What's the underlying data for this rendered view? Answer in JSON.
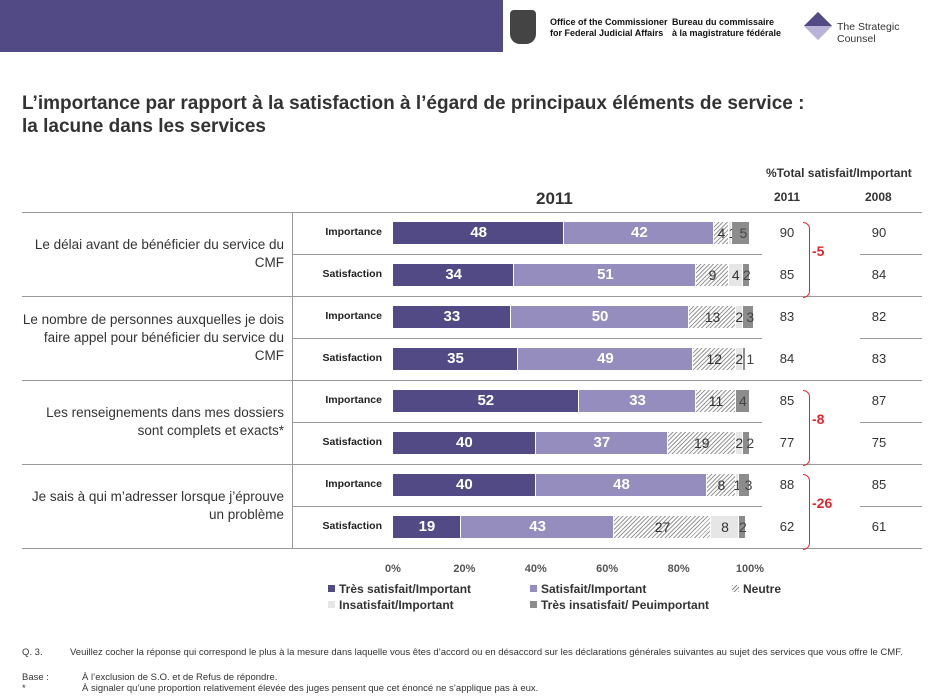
{
  "header": {
    "logo1_line1": "Office of the Commissioner",
    "logo1_line2": "for Federal Judicial Affairs",
    "logo2_line1": "Bureau du commissaire",
    "logo2_line2": "à la magistrature fédérale",
    "logo3": "The Strategic Counsel"
  },
  "title_line1": "L’importance par rapport à la satisfaction à l’égard de principaux éléments de service :",
  "title_line2": "la lacune dans les services",
  "colors": {
    "tres_satisfait": "#524a85",
    "satisfait": "#958dbd",
    "neutre": "hatched",
    "insatisfait": "#e6e6e6",
    "tres_insatisfait": "#8c8c8c",
    "gap": "#e0262c"
  },
  "chart_data": {
    "type": "bar",
    "orientation": "horizontal-stacked-100",
    "year_label": "2011",
    "xlim": [
      0,
      100
    ],
    "ticks": [
      "0%",
      "20%",
      "40%",
      "60%",
      "80%",
      "100%"
    ],
    "legend": [
      "Très satisfait/Important",
      "Satisfait/Important",
      "Neutre",
      "Insatisfait/Important",
      "Très insatisfait/ Peuimportant"
    ],
    "right_header": "%Total satisfait/Important",
    "right_cols": [
      "2011",
      "2008"
    ],
    "groups": [
      {
        "label": "Le délai avant de bénéficier du service du CMF",
        "gap": "-5",
        "rows": [
          {
            "label": "Importance",
            "values": [
              48,
              42,
              4,
              1,
              5
            ],
            "t2011": "90",
            "t2008": "90"
          },
          {
            "label": "Satisfaction",
            "values": [
              34,
              51,
              9,
              4,
              2
            ],
            "t2011": "85",
            "t2008": "84"
          }
        ]
      },
      {
        "label": "Le nombre de personnes auxquelles je dois faire appel pour bénéficier du service du CMF",
        "gap": "",
        "rows": [
          {
            "label": "Importance",
            "values": [
              33,
              50,
              13,
              2,
              3
            ],
            "t2011": "83",
            "t2008": "82"
          },
          {
            "label": "Satisfaction",
            "values": [
              35,
              49,
              12,
              2,
              1
            ],
            "t2011": "84",
            "t2008": "83"
          }
        ]
      },
      {
        "label": "Les renseignements dans mes dossiers sont complets et exacts*",
        "gap": "-8",
        "rows": [
          {
            "label": "Importance",
            "values": [
              52,
              33,
              11,
              0,
              4
            ],
            "t2011": "85",
            "t2008": "87"
          },
          {
            "label": "Satisfaction",
            "values": [
              40,
              37,
              19,
              2,
              2
            ],
            "t2011": "77",
            "t2008": "75"
          }
        ]
      },
      {
        "label": "Je sais à qui m’adresser lorsque j’éprouve un problème",
        "gap": "-26",
        "rows": [
          {
            "label": "Importance",
            "values": [
              40,
              48,
              8,
              1,
              3
            ],
            "t2011": "88",
            "t2008": "85"
          },
          {
            "label": "Satisfaction",
            "values": [
              19,
              43,
              27,
              8,
              2
            ],
            "t2011": "62",
            "t2008": "61"
          }
        ]
      }
    ]
  },
  "footnotes": [
    {
      "k": "Q. 3.",
      "v": "Veuillez cocher la réponse qui correspond le plus à la mesure dans laquelle vous êtes d’accord ou en désaccord sur les déclarations générales suivantes au sujet des services que vous offre le CMF."
    },
    {
      "k": "Base :",
      "v": "À l’exclusion de S.O. et de Refus de répondre."
    },
    {
      "k": "*",
      "v": "À signaler qu’une proportion relativement élevée des juges pensent que cet énoncé ne s’applique pas à eux."
    }
  ]
}
